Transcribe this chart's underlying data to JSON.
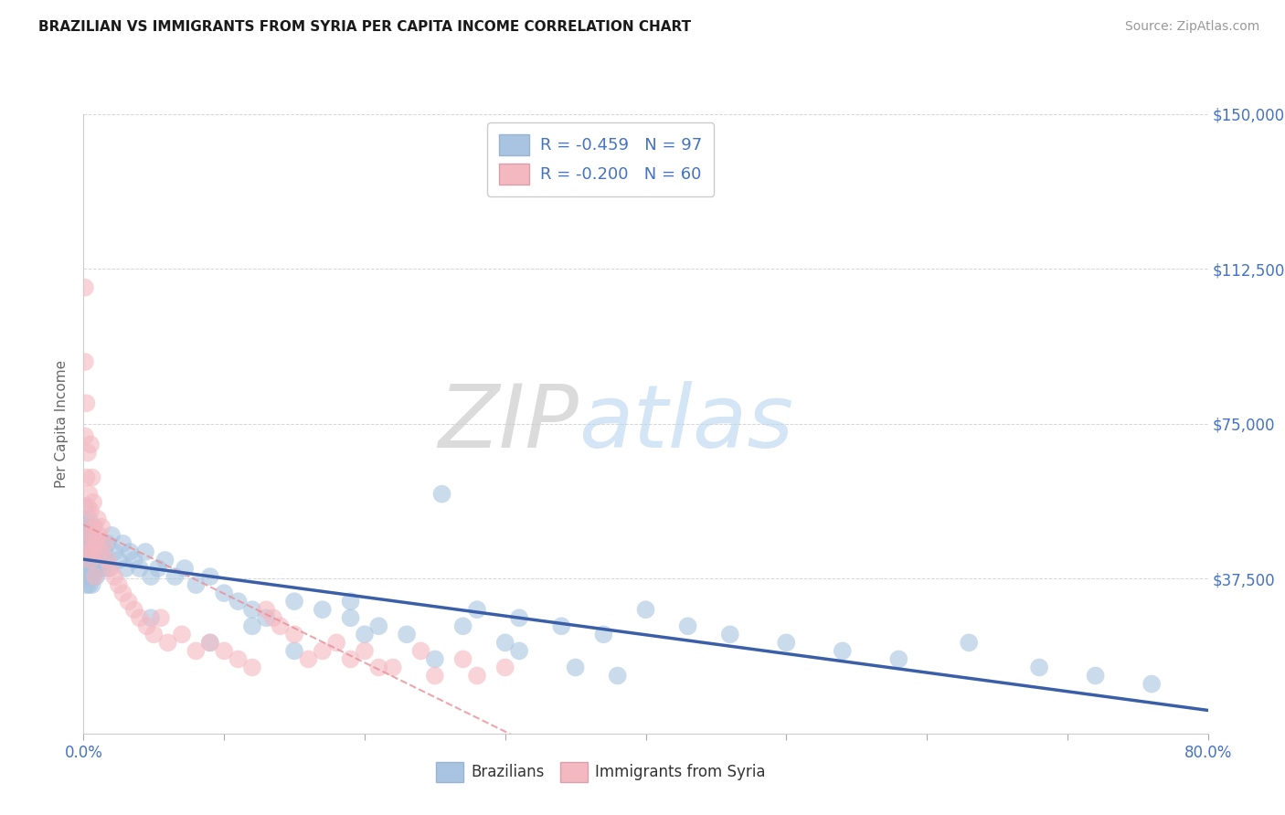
{
  "title": "BRAZILIAN VS IMMIGRANTS FROM SYRIA PER CAPITA INCOME CORRELATION CHART",
  "source_text": "Source: ZipAtlas.com",
  "ylabel": "Per Capita Income",
  "xlim": [
    0.0,
    0.8
  ],
  "ylim": [
    0,
    150000
  ],
  "xtick_positions": [
    0.0,
    0.1,
    0.2,
    0.3,
    0.4,
    0.5,
    0.6,
    0.7,
    0.8
  ],
  "xticklabels": [
    "0.0%",
    "",
    "",
    "",
    "",
    "",
    "",
    "",
    "80.0%"
  ],
  "ytick_values": [
    0,
    37500,
    75000,
    112500,
    150000
  ],
  "ytick_labels": [
    "",
    "$37,500",
    "$75,000",
    "$112,500",
    "$150,000"
  ],
  "watermark_zip": "ZIP",
  "watermark_atlas": "atlas",
  "legend_label1": "R = -0.459   N = 97",
  "legend_label2": "R = -0.200   N = 60",
  "blue_fill": "#a8c4e0",
  "blue_edge": "#4472c4",
  "pink_fill": "#f4b8c1",
  "pink_edge": "#e8909a",
  "blue_line_color": "#3a5fa8",
  "pink_line_color": "#e8909a",
  "axis_label_color": "#4472c4",
  "title_color": "#1a1a1a",
  "source_color": "#999999",
  "background_color": "#ffffff",
  "grid_color": "#cccccc",
  "ylabel_color": "#666666",
  "brazil_x": [
    0.001,
    0.001,
    0.001,
    0.001,
    0.001,
    0.002,
    0.002,
    0.002,
    0.002,
    0.002,
    0.002,
    0.003,
    0.003,
    0.003,
    0.003,
    0.003,
    0.004,
    0.004,
    0.004,
    0.004,
    0.005,
    0.005,
    0.005,
    0.005,
    0.006,
    0.006,
    0.006,
    0.007,
    0.007,
    0.007,
    0.008,
    0.008,
    0.008,
    0.009,
    0.009,
    0.01,
    0.01,
    0.011,
    0.012,
    0.013,
    0.014,
    0.015,
    0.016,
    0.017,
    0.018,
    0.02,
    0.022,
    0.025,
    0.028,
    0.03,
    0.033,
    0.036,
    0.04,
    0.044,
    0.048,
    0.053,
    0.058,
    0.065,
    0.072,
    0.08,
    0.09,
    0.1,
    0.11,
    0.12,
    0.13,
    0.15,
    0.17,
    0.19,
    0.21,
    0.23,
    0.255,
    0.28,
    0.31,
    0.34,
    0.37,
    0.4,
    0.43,
    0.46,
    0.5,
    0.54,
    0.58,
    0.63,
    0.68,
    0.72,
    0.76,
    0.048,
    0.09,
    0.12,
    0.15,
    0.2,
    0.25,
    0.3,
    0.35,
    0.19,
    0.27,
    0.31,
    0.38
  ],
  "brazil_y": [
    55000,
    48000,
    42000,
    38000,
    50000,
    52000,
    46000,
    40000,
    44000,
    36000,
    48000,
    50000,
    44000,
    38000,
    42000,
    46000,
    48000,
    42000,
    36000,
    52000,
    44000,
    38000,
    46000,
    40000,
    42000,
    48000,
    36000,
    44000,
    38000,
    50000,
    46000,
    40000,
    42000,
    44000,
    38000,
    46000,
    40000,
    44000,
    42000,
    46000,
    40000,
    44000,
    42000,
    46000,
    40000,
    48000,
    44000,
    42000,
    46000,
    40000,
    44000,
    42000,
    40000,
    44000,
    38000,
    40000,
    42000,
    38000,
    40000,
    36000,
    38000,
    34000,
    32000,
    30000,
    28000,
    32000,
    30000,
    28000,
    26000,
    24000,
    58000,
    30000,
    28000,
    26000,
    24000,
    30000,
    26000,
    24000,
    22000,
    20000,
    18000,
    22000,
    16000,
    14000,
    12000,
    28000,
    22000,
    26000,
    20000,
    24000,
    18000,
    22000,
    16000,
    32000,
    26000,
    20000,
    14000
  ],
  "syria_x": [
    0.001,
    0.001,
    0.001,
    0.002,
    0.002,
    0.002,
    0.003,
    0.003,
    0.003,
    0.004,
    0.004,
    0.005,
    0.005,
    0.005,
    0.006,
    0.006,
    0.007,
    0.007,
    0.008,
    0.008,
    0.009,
    0.01,
    0.011,
    0.012,
    0.013,
    0.015,
    0.017,
    0.019,
    0.022,
    0.025,
    0.028,
    0.032,
    0.036,
    0.04,
    0.045,
    0.05,
    0.055,
    0.06,
    0.07,
    0.08,
    0.09,
    0.1,
    0.11,
    0.12,
    0.135,
    0.15,
    0.17,
    0.19,
    0.21,
    0.24,
    0.27,
    0.3,
    0.18,
    0.14,
    0.16,
    0.22,
    0.25,
    0.2,
    0.13,
    0.28
  ],
  "syria_y": [
    108000,
    90000,
    72000,
    80000,
    62000,
    50000,
    68000,
    55000,
    44000,
    58000,
    46000,
    70000,
    54000,
    42000,
    62000,
    48000,
    56000,
    44000,
    50000,
    38000,
    46000,
    52000,
    48000,
    44000,
    50000,
    46000,
    42000,
    40000,
    38000,
    36000,
    34000,
    32000,
    30000,
    28000,
    26000,
    24000,
    28000,
    22000,
    24000,
    20000,
    22000,
    20000,
    18000,
    16000,
    28000,
    24000,
    20000,
    18000,
    16000,
    20000,
    18000,
    16000,
    22000,
    26000,
    18000,
    16000,
    14000,
    20000,
    30000,
    14000
  ]
}
